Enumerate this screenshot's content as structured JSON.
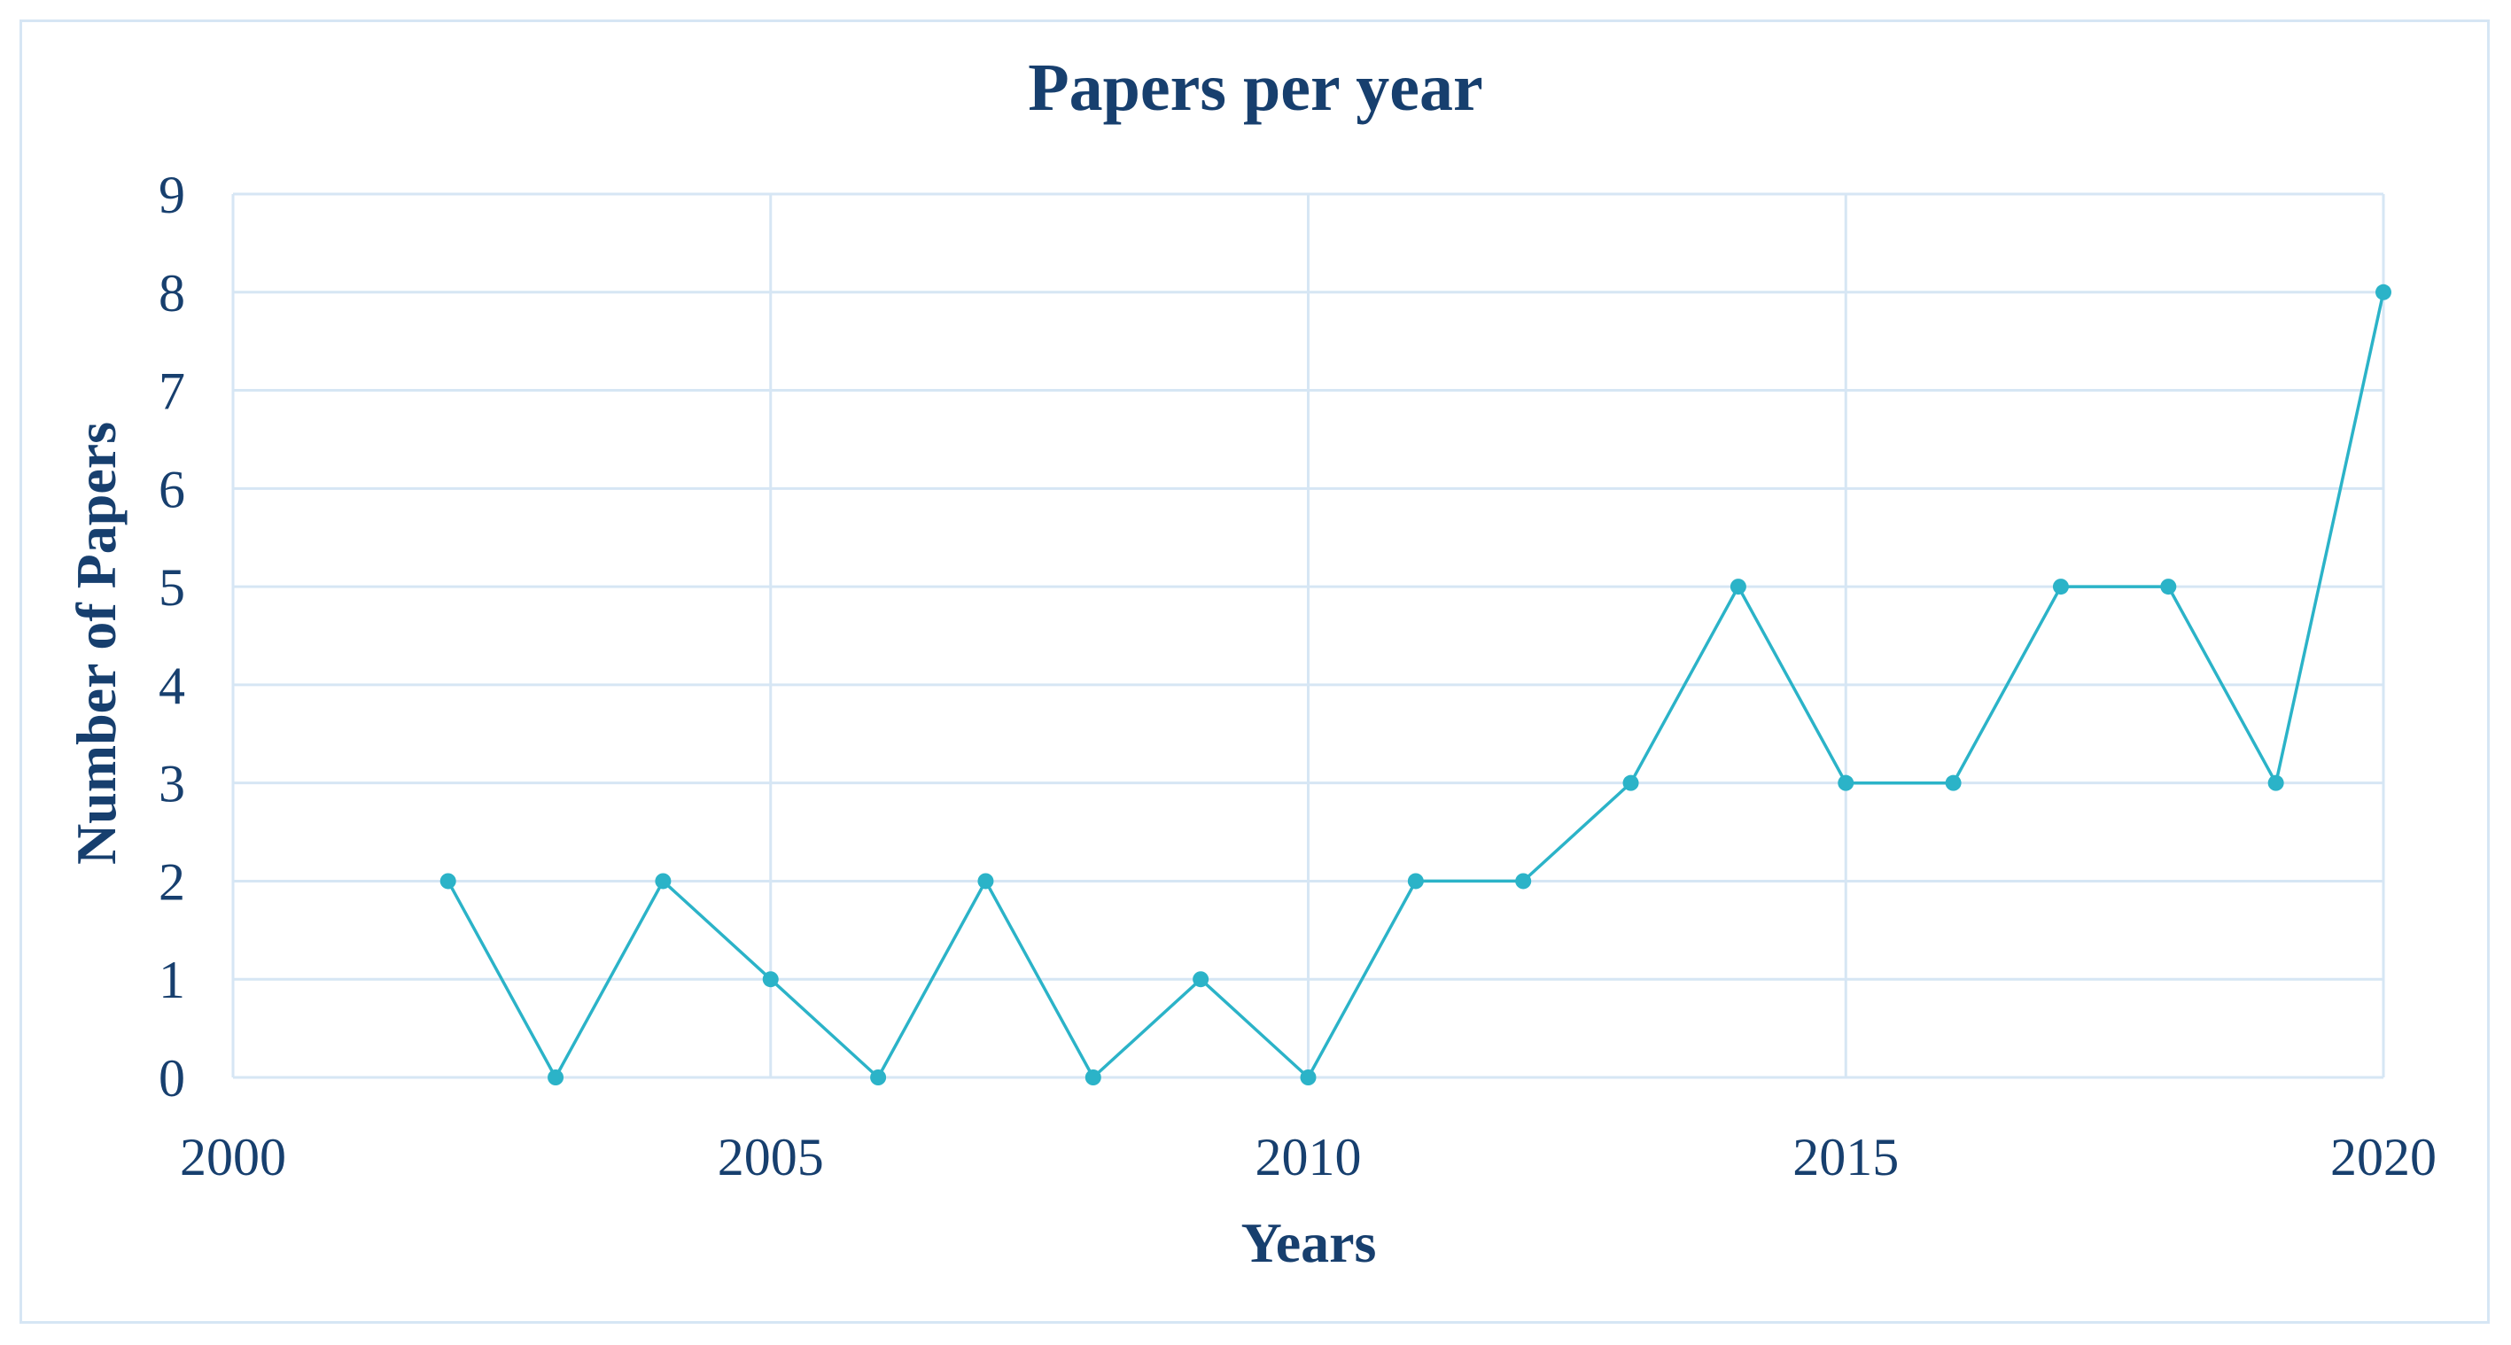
{
  "chart_data": {
    "type": "line",
    "title": "Papers per year",
    "xlabel": "Years",
    "ylabel": "Number of Papers",
    "xlim": [
      2000,
      2020
    ],
    "ylim": [
      0,
      9
    ],
    "xticks": [
      2000,
      2005,
      2010,
      2015,
      2020
    ],
    "yticks": [
      0,
      1,
      2,
      3,
      4,
      5,
      6,
      7,
      8,
      9
    ],
    "grid": true,
    "legend": "none",
    "series": [
      {
        "color": "#2bb3c8",
        "x": [
          2002,
          2003,
          2004,
          2005,
          2006,
          2007,
          2008,
          2009,
          2010,
          2011,
          2012,
          2013,
          2014,
          2015,
          2016,
          2017,
          2018,
          2019,
          2020
        ],
        "y": [
          2,
          0,
          2,
          1,
          0,
          2,
          0,
          1,
          0,
          2,
          2,
          3,
          5,
          3,
          3,
          5,
          5,
          3,
          8
        ]
      }
    ]
  }
}
